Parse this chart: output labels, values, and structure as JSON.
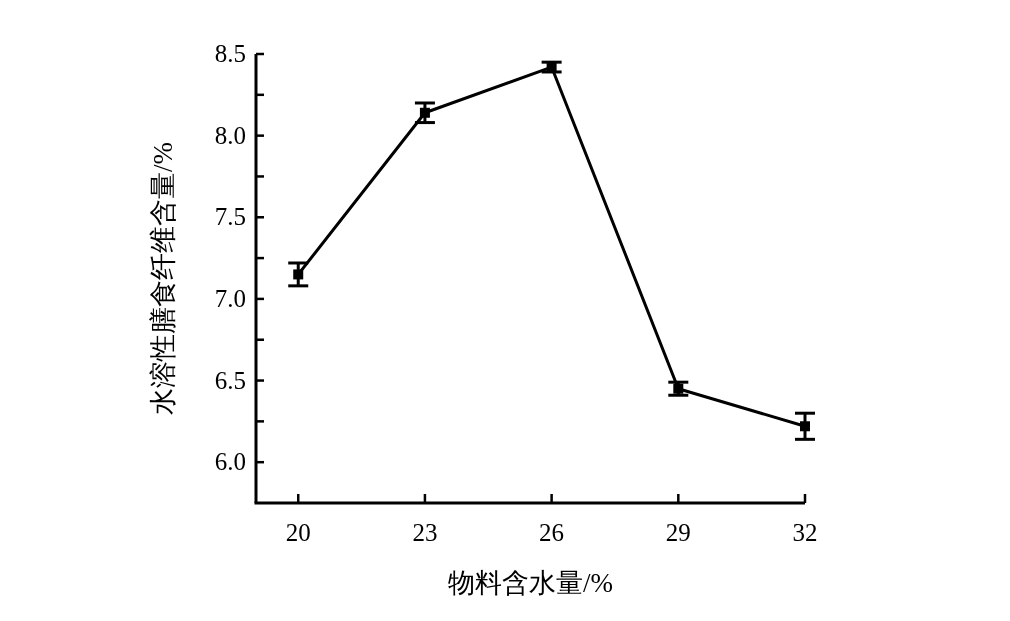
{
  "chart_data": {
    "type": "line",
    "xlabel": "物料含水量/%",
    "ylabel": "水溶性膳食纤维含量/%",
    "x": [
      20,
      23,
      26,
      29,
      32
    ],
    "series": [
      {
        "color": "#000000",
        "values": [
          7.15,
          8.14,
          8.42,
          6.45,
          6.22
        ],
        "errors": [
          0.07,
          0.06,
          0.03,
          0.04,
          0.08
        ]
      }
    ],
    "xlim": [
      19,
      32
    ],
    "xticks": [
      20,
      23,
      26,
      29,
      32
    ],
    "ylim": [
      5.75,
      8.5
    ],
    "yticks": [
      {
        "value": 6,
        "label": "6.0"
      },
      {
        "value": 6.25,
        "label": null
      },
      6.5,
      {
        "value": 6.75,
        "label": null
      },
      {
        "value": 7,
        "label": "7.0"
      },
      {
        "value": 7.25,
        "label": null
      },
      7.5,
      {
        "value": 7.75,
        "label": null
      },
      {
        "value": 8,
        "label": "8.0"
      },
      {
        "value": 8.25,
        "label": null
      },
      8.5
    ],
    "marker": "square",
    "line_style": "solid"
  }
}
